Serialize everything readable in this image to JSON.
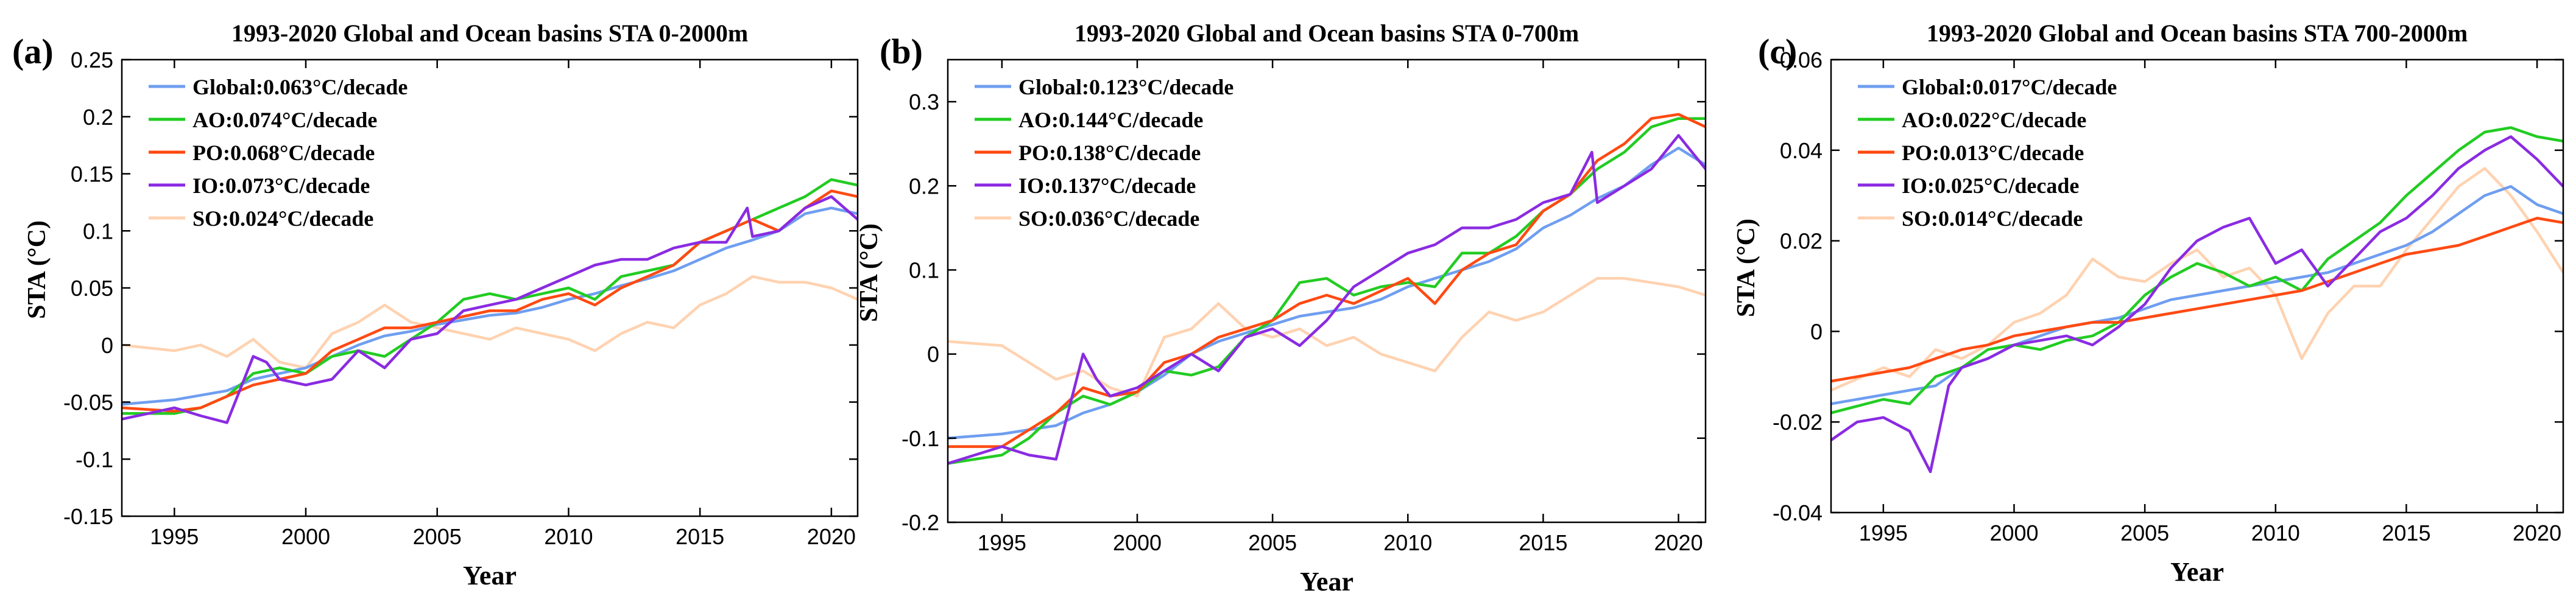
{
  "figure": {
    "colors": {
      "Global": "#6f9ef0",
      "AO": "#22cc22",
      "PO": "#ff4a12",
      "IO": "#8a2be2",
      "SO": "#ffd2b0"
    }
  },
  "chart_data": [
    {
      "type": "line",
      "panel_label": "(a)",
      "title": "1993-2020 Global and Ocean basins STA 0-2000m",
      "xlabel": "Year",
      "ylabel": "STA (°C)",
      "xlim": [
        1993,
        2021
      ],
      "ylim": [
        -0.15,
        0.25
      ],
      "xticks": [
        "1995",
        "2000",
        "2005",
        "2010",
        "2015",
        "2020"
      ],
      "yticks": [
        "0.25",
        "0.2",
        "0.15",
        "0.1",
        "0.05",
        "0",
        "-0.05",
        "-0.1",
        "-0.15"
      ],
      "legend_position": "top-left",
      "series": [
        {
          "key": "Global",
          "name": "Global:0.063°C/decade",
          "x": [
            1993,
            1995,
            1997,
            1998,
            1999,
            2000,
            2001,
            2002,
            2003,
            2004,
            2005,
            2006,
            2007,
            2008,
            2009,
            2010,
            2011,
            2012,
            2013,
            2014,
            2015,
            2016,
            2017,
            2018,
            2019,
            2020,
            2021
          ],
          "y": [
            -0.052,
            -0.048,
            -0.04,
            -0.03,
            -0.025,
            -0.02,
            -0.01,
            0.0,
            0.008,
            0.012,
            0.018,
            0.022,
            0.026,
            0.028,
            0.033,
            0.04,
            0.045,
            0.052,
            0.058,
            0.065,
            0.075,
            0.085,
            0.092,
            0.1,
            0.115,
            0.12,
            0.115
          ]
        },
        {
          "key": "AO",
          "name": "AO:0.074°C/decade",
          "x": [
            1993,
            1995,
            1996,
            1997,
            1998,
            1999,
            2000,
            2001,
            2002,
            2003,
            2004,
            2005,
            2006,
            2007,
            2008,
            2009,
            2010,
            2011,
            2012,
            2013,
            2014,
            2015,
            2016,
            2017,
            2018,
            2019,
            2020,
            2021
          ],
          "y": [
            -0.06,
            -0.06,
            -0.055,
            -0.045,
            -0.025,
            -0.02,
            -0.025,
            -0.01,
            -0.005,
            -0.01,
            0.005,
            0.02,
            0.04,
            0.045,
            0.04,
            0.045,
            0.05,
            0.04,
            0.06,
            0.065,
            0.07,
            0.09,
            0.1,
            0.11,
            0.12,
            0.13,
            0.145,
            0.14
          ]
        },
        {
          "key": "PO",
          "name": "PO:0.068°C/decade",
          "x": [
            1993,
            1995,
            1996,
            1997,
            1998,
            1999,
            2000,
            2001,
            2002,
            2003,
            2004,
            2005,
            2006,
            2007,
            2008,
            2009,
            2010,
            2011,
            2012,
            2013,
            2014,
            2015,
            2016,
            2017,
            2018,
            2019,
            2020,
            2021
          ],
          "y": [
            -0.055,
            -0.058,
            -0.055,
            -0.045,
            -0.035,
            -0.03,
            -0.025,
            -0.005,
            0.005,
            0.015,
            0.015,
            0.02,
            0.025,
            0.03,
            0.03,
            0.04,
            0.045,
            0.035,
            0.05,
            0.06,
            0.07,
            0.09,
            0.1,
            0.11,
            0.1,
            0.12,
            0.135,
            0.13
          ]
        },
        {
          "key": "IO",
          "name": "IO:0.073°C/decade",
          "x": [
            1993,
            1994,
            1995,
            1996,
            1997,
            1998,
            1998.5,
            1999,
            2000,
            2001,
            2002,
            2003,
            2004,
            2005,
            2006,
            2007,
            2008,
            2009,
            2010,
            2011,
            2012,
            2013,
            2014,
            2015,
            2016,
            2016.8,
            2017,
            2018,
            2019,
            2020,
            2021
          ],
          "y": [
            -0.065,
            -0.06,
            -0.055,
            -0.062,
            -0.068,
            -0.01,
            -0.015,
            -0.03,
            -0.035,
            -0.03,
            -0.005,
            -0.02,
            0.005,
            0.01,
            0.03,
            0.035,
            0.04,
            0.05,
            0.06,
            0.07,
            0.075,
            0.075,
            0.085,
            0.09,
            0.09,
            0.12,
            0.095,
            0.1,
            0.12,
            0.13,
            0.11
          ]
        },
        {
          "key": "SO",
          "name": "SO:0.024°C/decade",
          "x": [
            1993,
            1995,
            1996,
            1997,
            1998,
            1999,
            2000,
            2001,
            2002,
            2003,
            2004,
            2005,
            2006,
            2007,
            2008,
            2009,
            2010,
            2011,
            2012,
            2013,
            2014,
            2015,
            2016,
            2017,
            2018,
            2019,
            2020,
            2021
          ],
          "y": [
            0.0,
            -0.005,
            0.0,
            -0.01,
            0.005,
            -0.015,
            -0.02,
            0.01,
            0.02,
            0.035,
            0.02,
            0.015,
            0.01,
            0.005,
            0.015,
            0.01,
            0.005,
            -0.005,
            0.01,
            0.02,
            0.015,
            0.035,
            0.045,
            0.06,
            0.055,
            0.055,
            0.05,
            0.04
          ]
        }
      ]
    },
    {
      "type": "line",
      "panel_label": "(b)",
      "title": "1993-2020 Global and Ocean basins STA 0-700m",
      "xlabel": "Year",
      "ylabel": "STA (°C)",
      "xlim": [
        1993,
        2021
      ],
      "ylim": [
        -0.2,
        0.35
      ],
      "xticks": [
        "1995",
        "2000",
        "2005",
        "2010",
        "2015",
        "2020"
      ],
      "yticks": [
        "0.3",
        "0.2",
        "0.1",
        "0",
        "-0.1",
        "-0.2"
      ],
      "legend_position": "top-left",
      "series": [
        {
          "key": "Global",
          "name": "Global:0.123°C/decade",
          "x": [
            1993,
            1995,
            1997,
            1998,
            1999,
            2000,
            2001,
            2002,
            2003,
            2004,
            2005,
            2006,
            2007,
            2008,
            2009,
            2010,
            2011,
            2012,
            2013,
            2014,
            2015,
            2016,
            2017,
            2018,
            2019,
            2020,
            2021
          ],
          "y": [
            -0.1,
            -0.095,
            -0.085,
            -0.07,
            -0.06,
            -0.045,
            -0.025,
            0.0,
            0.015,
            0.025,
            0.035,
            0.045,
            0.05,
            0.055,
            0.065,
            0.08,
            0.09,
            0.1,
            0.11,
            0.125,
            0.15,
            0.165,
            0.185,
            0.2,
            0.225,
            0.245,
            0.225
          ]
        },
        {
          "key": "AO",
          "name": "AO:0.144°C/decade",
          "x": [
            1993,
            1995,
            1996,
            1997,
            1998,
            1999,
            2000,
            2001,
            2002,
            2003,
            2004,
            2005,
            2006,
            2007,
            2008,
            2009,
            2010,
            2011,
            2012,
            2013,
            2014,
            2015,
            2016,
            2017,
            2018,
            2019,
            2020,
            2021
          ],
          "y": [
            -0.13,
            -0.12,
            -0.1,
            -0.07,
            -0.05,
            -0.06,
            -0.045,
            -0.02,
            -0.025,
            -0.015,
            0.02,
            0.04,
            0.085,
            0.09,
            0.07,
            0.08,
            0.085,
            0.08,
            0.12,
            0.12,
            0.14,
            0.17,
            0.19,
            0.22,
            0.24,
            0.27,
            0.28,
            0.28
          ]
        },
        {
          "key": "PO",
          "name": "PO:0.138°C/decade",
          "x": [
            1993,
            1995,
            1996,
            1997,
            1998,
            1999,
            2000,
            2001,
            2002,
            2003,
            2004,
            2005,
            2006,
            2007,
            2008,
            2009,
            2010,
            2011,
            2012,
            2013,
            2014,
            2015,
            2016,
            2017,
            2018,
            2019,
            2020,
            2021
          ],
          "y": [
            -0.11,
            -0.11,
            -0.09,
            -0.07,
            -0.04,
            -0.05,
            -0.045,
            -0.01,
            0.0,
            0.02,
            0.03,
            0.04,
            0.06,
            0.07,
            0.06,
            0.075,
            0.09,
            0.06,
            0.1,
            0.12,
            0.13,
            0.17,
            0.19,
            0.23,
            0.25,
            0.28,
            0.285,
            0.27
          ]
        },
        {
          "key": "IO",
          "name": "IO:0.137°C/decade",
          "x": [
            1993,
            1994,
            1995,
            1996,
            1997,
            1998,
            1998.5,
            1999,
            2000,
            2001,
            2002,
            2003,
            2004,
            2005,
            2006,
            2007,
            2008,
            2009,
            2010,
            2011,
            2012,
            2013,
            2014,
            2015,
            2016,
            2016.8,
            2017,
            2018,
            2019,
            2020,
            2021
          ],
          "y": [
            -0.13,
            -0.12,
            -0.11,
            -0.12,
            -0.125,
            0.0,
            -0.03,
            -0.05,
            -0.04,
            -0.02,
            0.0,
            -0.02,
            0.02,
            0.03,
            0.01,
            0.04,
            0.08,
            0.1,
            0.12,
            0.13,
            0.15,
            0.15,
            0.16,
            0.18,
            0.19,
            0.24,
            0.18,
            0.2,
            0.22,
            0.26,
            0.22
          ]
        },
        {
          "key": "SO",
          "name": "SO:0.036°C/decade",
          "x": [
            1993,
            1995,
            1996,
            1997,
            1998,
            1999,
            2000,
            2001,
            2002,
            2003,
            2004,
            2005,
            2006,
            2007,
            2008,
            2009,
            2010,
            2011,
            2012,
            2013,
            2014,
            2015,
            2016,
            2017,
            2018,
            2019,
            2020,
            2021
          ],
          "y": [
            0.015,
            0.01,
            -0.01,
            -0.03,
            -0.02,
            -0.04,
            -0.05,
            0.02,
            0.03,
            0.06,
            0.03,
            0.02,
            0.03,
            0.01,
            0.02,
            0.0,
            -0.01,
            -0.02,
            0.02,
            0.05,
            0.04,
            0.05,
            0.07,
            0.09,
            0.09,
            0.085,
            0.08,
            0.07
          ]
        }
      ]
    },
    {
      "type": "line",
      "panel_label": "(c)",
      "title": "1993-2020 Global and Ocean basins STA 700-2000m",
      "xlabel": "Year",
      "ylabel": "STA (°C)",
      "xlim": [
        1993,
        2021
      ],
      "ylim": [
        -0.04,
        0.06
      ],
      "xticks": [
        "1995",
        "2000",
        "2005",
        "2010",
        "2015",
        "2020"
      ],
      "yticks": [
        "0.06",
        "0.04",
        "0.02",
        "0",
        "-0.02",
        "-0.04"
      ],
      "legend_position": "top-left",
      "series": [
        {
          "key": "Global",
          "name": "Global:0.017°C/decade",
          "x": [
            1993,
            1995,
            1997,
            1998,
            1999,
            2000,
            2001,
            2002,
            2003,
            2004,
            2005,
            2006,
            2007,
            2008,
            2009,
            2010,
            2011,
            2012,
            2013,
            2014,
            2015,
            2016,
            2017,
            2018,
            2019,
            2020,
            2021
          ],
          "y": [
            -0.016,
            -0.014,
            -0.012,
            -0.008,
            -0.006,
            -0.003,
            -0.001,
            0.001,
            0.002,
            0.003,
            0.005,
            0.007,
            0.008,
            0.009,
            0.01,
            0.011,
            0.012,
            0.013,
            0.015,
            0.017,
            0.019,
            0.022,
            0.026,
            0.03,
            0.032,
            0.028,
            0.026
          ]
        },
        {
          "key": "AO",
          "name": "AO:0.022°C/decade",
          "x": [
            1993,
            1995,
            1996,
            1997,
            1998,
            1999,
            2000,
            2001,
            2002,
            2003,
            2004,
            2005,
            2006,
            2007,
            2008,
            2009,
            2010,
            2011,
            2012,
            2013,
            2014,
            2015,
            2016,
            2017,
            2018,
            2019,
            2020,
            2021
          ],
          "y": [
            -0.018,
            -0.015,
            -0.016,
            -0.01,
            -0.008,
            -0.004,
            -0.003,
            -0.004,
            -0.002,
            -0.001,
            0.002,
            0.008,
            0.012,
            0.015,
            0.013,
            0.01,
            0.012,
            0.009,
            0.016,
            0.02,
            0.024,
            0.03,
            0.035,
            0.04,
            0.044,
            0.045,
            0.043,
            0.042
          ]
        },
        {
          "key": "PO",
          "name": "PO:0.013°C/decade",
          "x": [
            1993,
            1995,
            1996,
            1997,
            1998,
            1999,
            2000,
            2001,
            2002,
            2003,
            2004,
            2005,
            2006,
            2007,
            2008,
            2009,
            2010,
            2011,
            2012,
            2013,
            2014,
            2015,
            2016,
            2017,
            2018,
            2019,
            2020,
            2021
          ],
          "y": [
            -0.011,
            -0.009,
            -0.008,
            -0.006,
            -0.004,
            -0.003,
            -0.001,
            0.0,
            0.001,
            0.002,
            0.002,
            0.003,
            0.004,
            0.005,
            0.006,
            0.007,
            0.008,
            0.009,
            0.011,
            0.013,
            0.015,
            0.017,
            0.018,
            0.019,
            0.021,
            0.023,
            0.025,
            0.024
          ]
        },
        {
          "key": "IO",
          "name": "IO:0.025°C/decade",
          "x": [
            1993,
            1994,
            1995,
            1996,
            1996.8,
            1997.5,
            1998,
            1999,
            2000,
            2001,
            2002,
            2003,
            2004,
            2005,
            2006,
            2007,
            2008,
            2009,
            2010,
            2011,
            2012,
            2013,
            2014,
            2015,
            2016,
            2017,
            2018,
            2019,
            2020,
            2021
          ],
          "y": [
            -0.024,
            -0.02,
            -0.019,
            -0.022,
            -0.031,
            -0.012,
            -0.008,
            -0.006,
            -0.003,
            -0.002,
            -0.001,
            -0.003,
            0.001,
            0.006,
            0.014,
            0.02,
            0.023,
            0.025,
            0.015,
            0.018,
            0.01,
            0.016,
            0.022,
            0.025,
            0.03,
            0.036,
            0.04,
            0.043,
            0.038,
            0.032
          ]
        },
        {
          "key": "SO",
          "name": "SO:0.014°C/decade",
          "x": [
            1993,
            1995,
            1996,
            1997,
            1998,
            1999,
            2000,
            2001,
            2002,
            2003,
            2004,
            2005,
            2006,
            2007,
            2008,
            2009,
            2010,
            2011,
            2012,
            2013,
            2014,
            2015,
            2016,
            2017,
            2018,
            2019,
            2020,
            2021
          ],
          "y": [
            -0.013,
            -0.008,
            -0.01,
            -0.004,
            -0.006,
            -0.003,
            0.002,
            0.004,
            0.008,
            0.016,
            0.012,
            0.011,
            0.015,
            0.018,
            0.012,
            0.014,
            0.008,
            -0.006,
            0.004,
            0.01,
            0.01,
            0.018,
            0.025,
            0.032,
            0.036,
            0.03,
            0.022,
            0.013
          ]
        }
      ]
    }
  ]
}
